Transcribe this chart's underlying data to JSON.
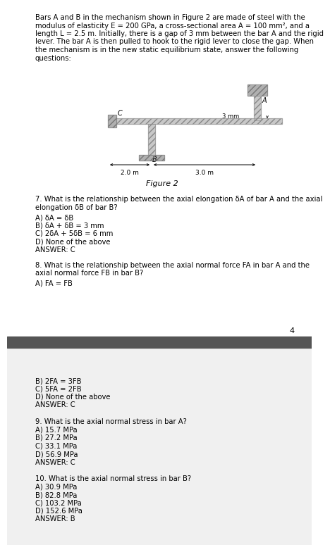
{
  "bg_white": "#ffffff",
  "bg_gray": "#f0f0f0",
  "divider_color": "#555555",
  "text_color": "#000000",
  "fig_width": 4.32,
  "fig_height": 7.64,
  "header_lines": [
    "Bars A and B in the mechanism shown in Figure 2 are made of steel with the",
    "modulus of elasticity E = 200 GPa, a cross-sectional area A = 100 mm², and a",
    "length L = 2.5 m. Initially, there is a gap of 3 mm between the bar A and the rigid",
    "lever. The bar A is then pulled to hook to the rigid lever to close the gap. When",
    "the mechanism is in the new static equilibrium state, answer the following",
    "questions:"
  ],
  "figure_caption": "Figure 2",
  "q7_line1": "7. What is the relationship between the axial elongation δA of bar A and the axial",
  "q7_line2": "elongation δB of bar B?",
  "q7_a": "A) δA = δB",
  "q7_b": "B) δA + δB = 3 mm",
  "q7_c": "C) 2δA + 5δB = 6 mm",
  "q7_d": "D) None of the above",
  "q7_ans": "ANSWER: C",
  "q8_line1": "8. What is the relationship between the axial normal force FA in bar A and the",
  "q8_line2": "axial normal force FB in bar B?",
  "q8_a": "A) FA = FB",
  "q8_b": "B) 2FA = 3FB",
  "q8_c": "C) 5FA = 2FB",
  "q8_d": "D) None of the above",
  "q8_ans": "ANSWER: C",
  "page_num": "4",
  "q9_line1": "9. What is the axial normal stress in bar A?",
  "q9_a": "A) 15.7 MPa",
  "q9_b": "B) 27.2 MPa",
  "q9_c": "C) 33.1 MPa",
  "q9_d": "D) 56.9 MPa",
  "q9_ans": "ANSWER: C",
  "q10_line1": "10. What is the axial normal stress in bar B?",
  "q10_a": "A) 30.9 MPa",
  "q10_b": "B) 82.8 MPa",
  "q10_c": "C) 103.2 MPa",
  "q10_d": "D) 152.6 MPa",
  "q10_ans": "ANSWER: B"
}
